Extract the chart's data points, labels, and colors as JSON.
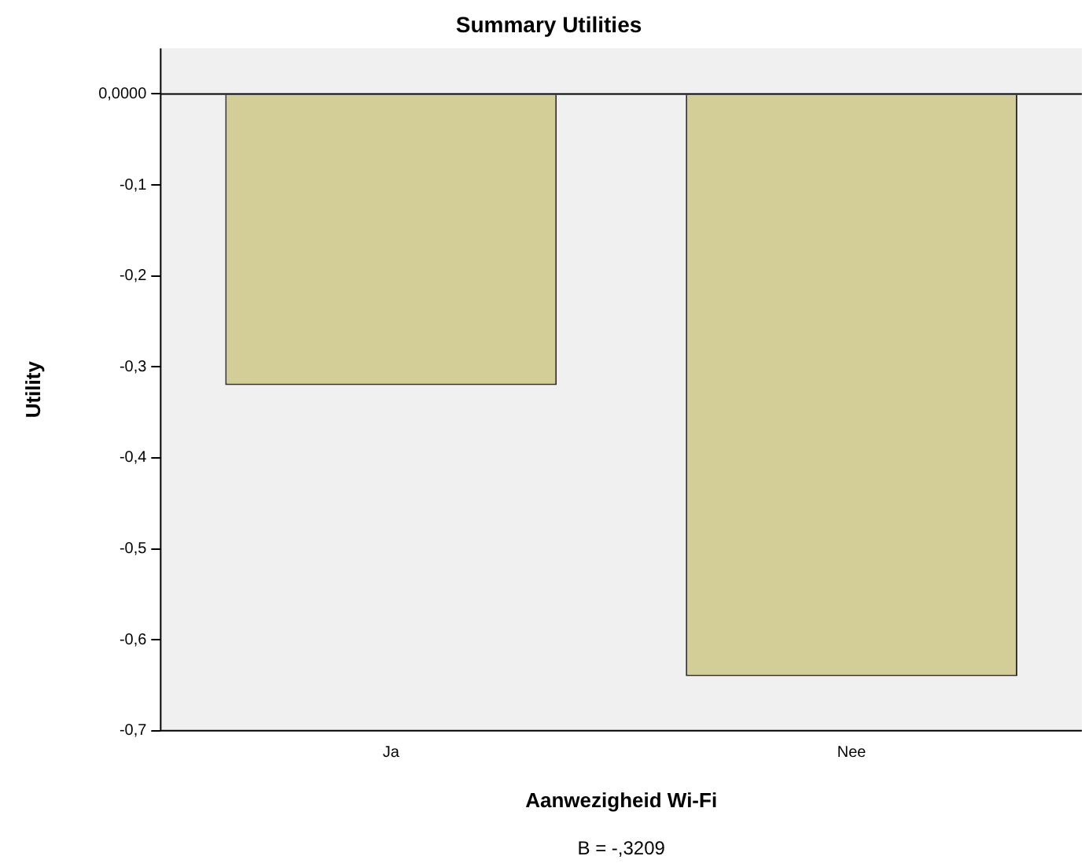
{
  "chart_data": {
    "type": "bar",
    "title": "Summary Utilities",
    "xlabel": "Aanwezigheid Wi-Fi",
    "ylabel": "Utility",
    "categories": [
      "Ja",
      "Nee"
    ],
    "values": [
      -0.32,
      -0.64
    ],
    "color": "#d3ce98",
    "ylim": [
      -0.7,
      0.05
    ],
    "yticks": [
      {
        "value": 0,
        "label": "0,0000"
      },
      {
        "value": -0.1,
        "label": "-0,1"
      },
      {
        "value": -0.2,
        "label": "-0,2"
      },
      {
        "value": -0.3,
        "label": "-0,3"
      },
      {
        "value": -0.4,
        "label": "-0,4"
      },
      {
        "value": -0.5,
        "label": "-0,5"
      },
      {
        "value": -0.6,
        "label": "-0,6"
      },
      {
        "value": -0.7,
        "label": "-0,7"
      }
    ],
    "ref_lines": [
      {
        "axis": "y",
        "value": 0,
        "color": "#000000"
      }
    ],
    "annotations": [
      "B = -,3209"
    ],
    "grid": false,
    "legend": false
  }
}
